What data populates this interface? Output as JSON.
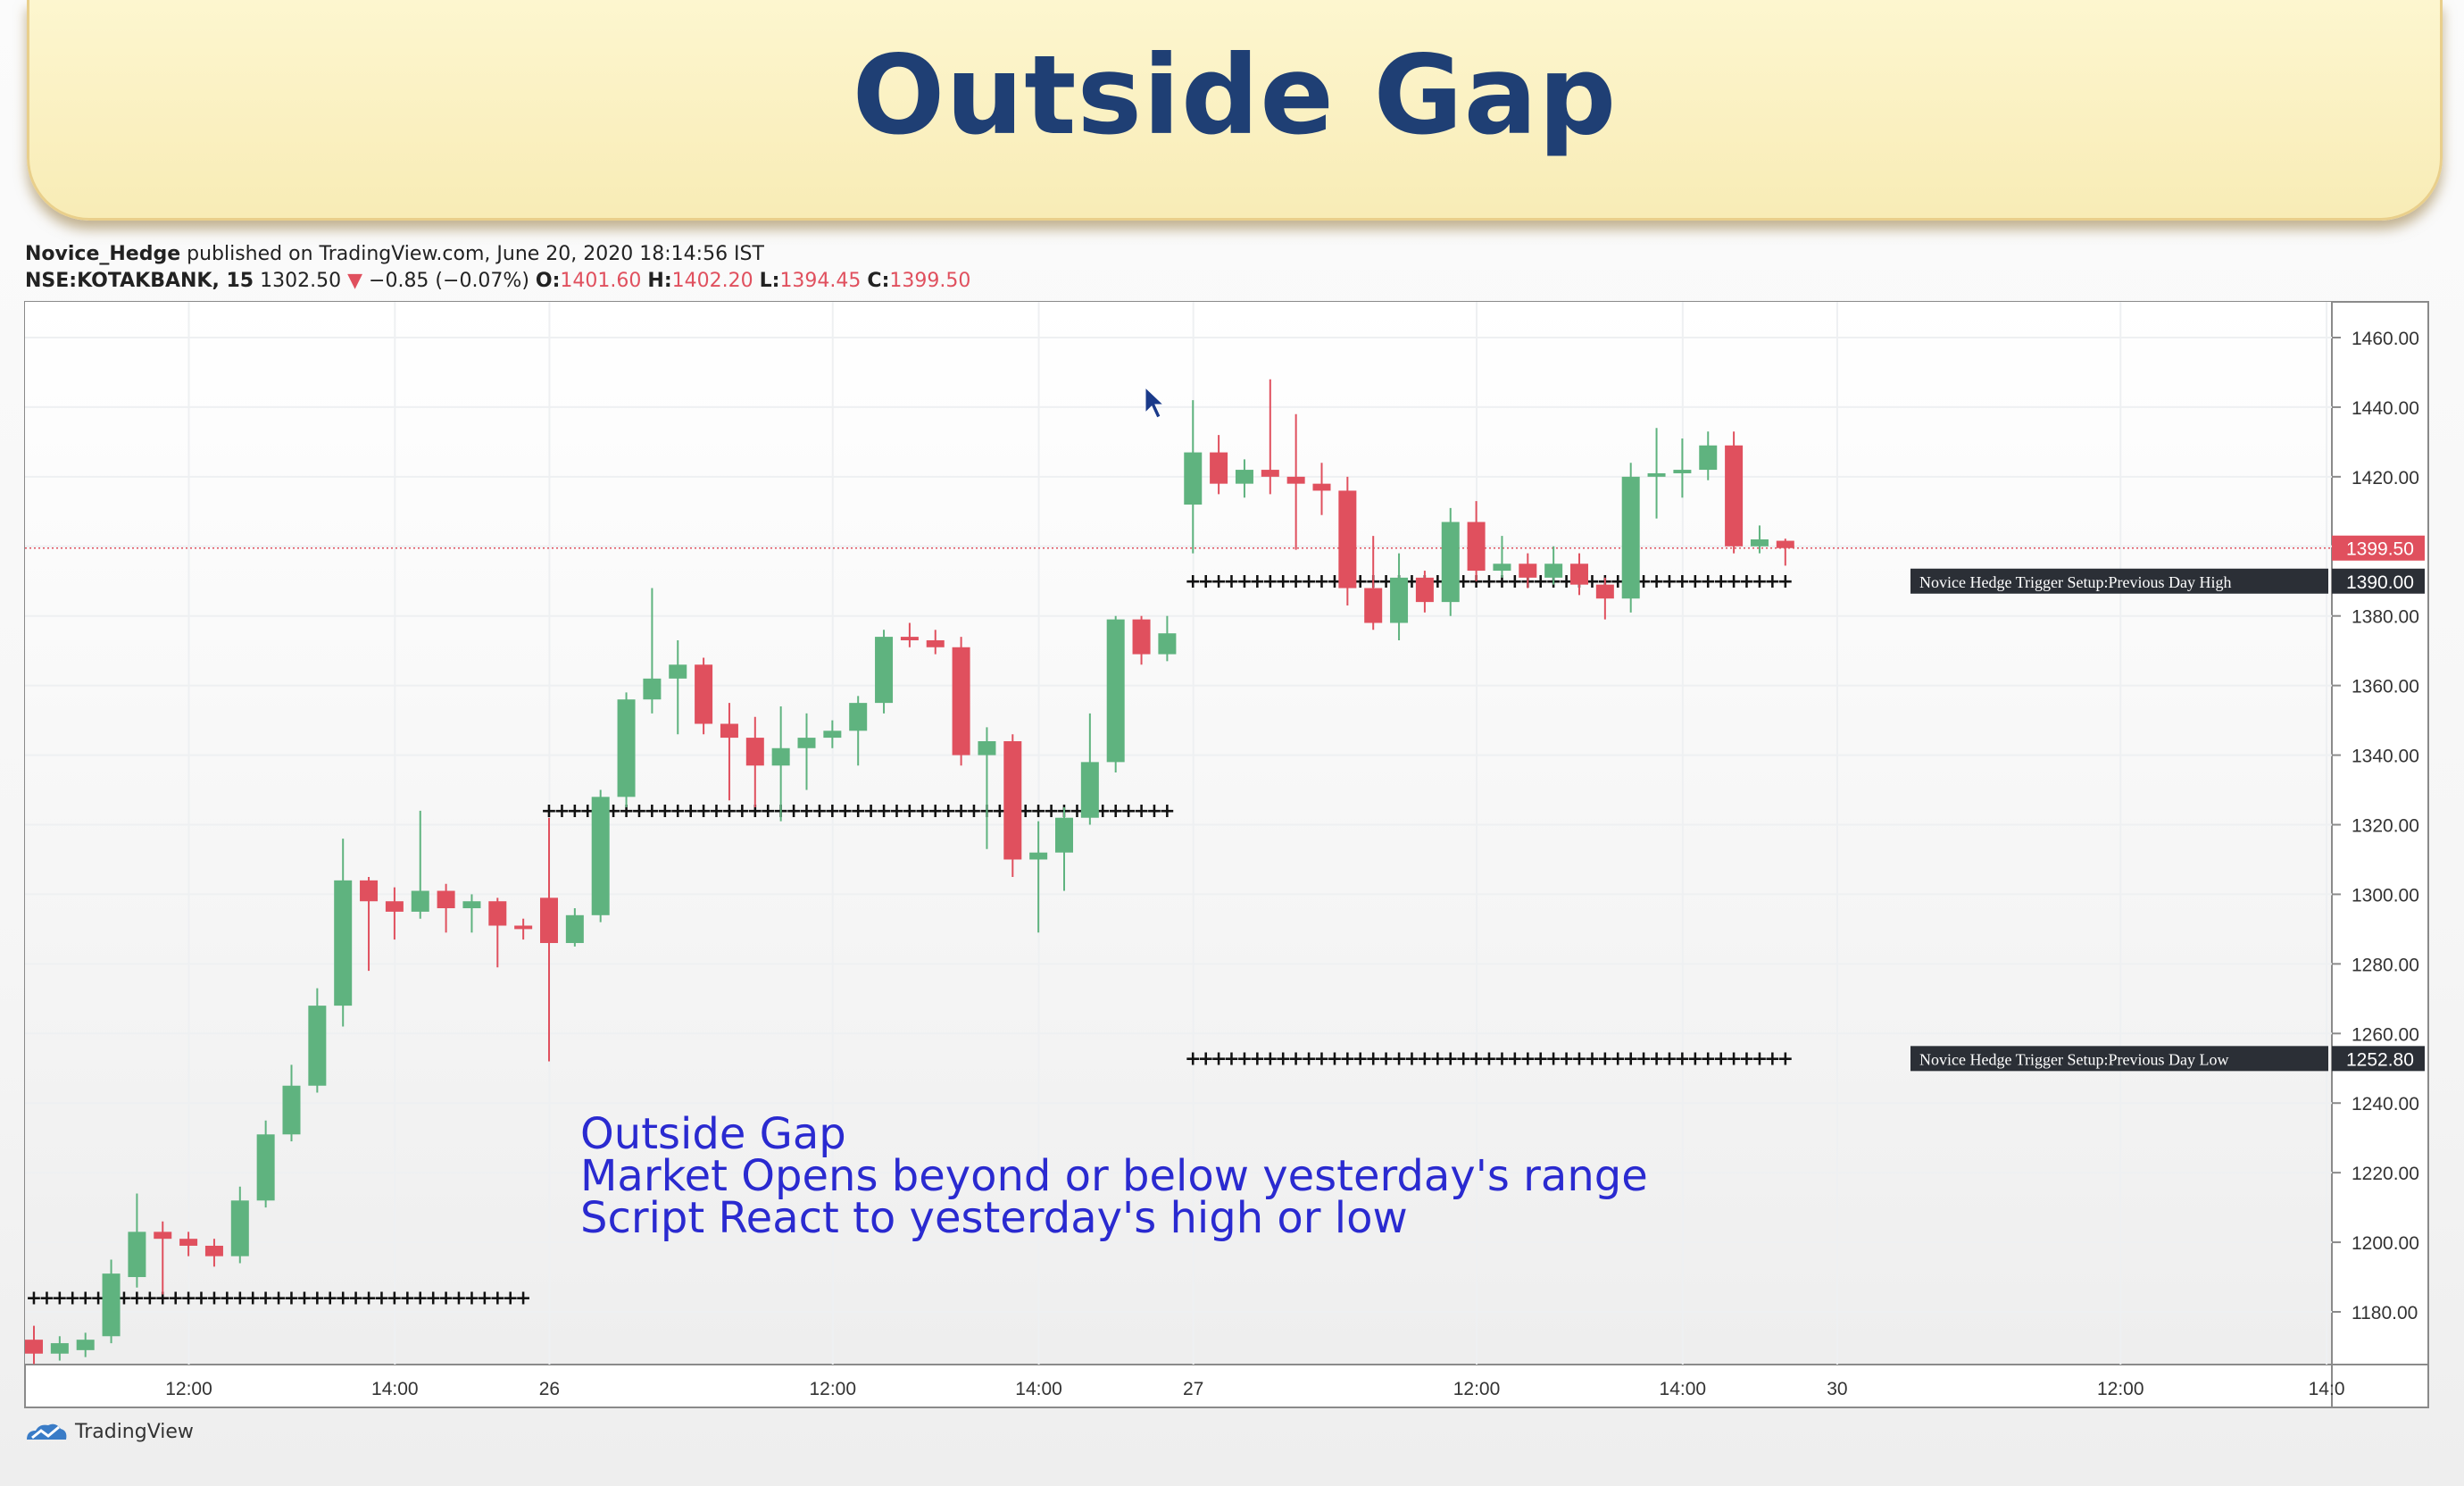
{
  "banner": {
    "title": "Outside Gap"
  },
  "header": {
    "author": "Novice_Hedge",
    "published_text": "published on TradingView.com, June 20, 2020 18:14:56 IST",
    "symbol": "NSE:KOTAKBANK, 15",
    "price": "1302.50",
    "change": "−0.85 (−0.07%)",
    "o_label": "O:",
    "o_value": "1401.60",
    "h_label": "H:",
    "h_value": "1402.20",
    "l_label": "L:",
    "l_value": "1394.45",
    "c_label": "C:",
    "c_value": "1399.50"
  },
  "footer": {
    "brand": "TradingView"
  },
  "colors": {
    "up": "#5fb37f",
    "down": "#e0505e",
    "annotation": "#2a2ad0",
    "axis_label_bg": "#2b2f36"
  },
  "chart_data": {
    "type": "candlestick",
    "title": "",
    "ylim": [
      1168,
      1468
    ],
    "y_ticks": [
      "1460.00",
      "1440.00",
      "1420.00",
      "1400.00",
      "1380.00",
      "1360.00",
      "1340.00",
      "1320.00",
      "1300.00",
      "1280.00",
      "1260.00",
      "1240.00",
      "1220.00",
      "1200.00",
      "1180.00"
    ],
    "x_ticks": [
      {
        "bar": 6,
        "label": "12:00"
      },
      {
        "bar": 14,
        "label": "14:00"
      },
      {
        "bar": 20,
        "label": "26"
      },
      {
        "bar": 31,
        "label": "12:00"
      },
      {
        "bar": 39,
        "label": "14:00"
      },
      {
        "bar": 45,
        "label": "27"
      },
      {
        "bar": 56,
        "label": "12:00"
      },
      {
        "bar": 64,
        "label": "14:00"
      },
      {
        "bar": 70,
        "label": "30"
      },
      {
        "bar": 81,
        "label": "12:00"
      },
      {
        "bar": 89,
        "label": "14:0"
      }
    ],
    "candles": [
      [
        1172,
        1168,
        1176,
        1165
      ],
      [
        1168,
        1171,
        1173,
        1166
      ],
      [
        1169,
        1172,
        1174,
        1167
      ],
      [
        1173,
        1191,
        1195,
        1171
      ],
      [
        1190,
        1203,
        1214,
        1187
      ],
      [
        1203,
        1201,
        1206,
        1185
      ],
      [
        1201,
        1199,
        1203,
        1196
      ],
      [
        1199,
        1196,
        1201,
        1193
      ],
      [
        1196,
        1212,
        1216,
        1194
      ],
      [
        1212,
        1231,
        1235,
        1210
      ],
      [
        1231,
        1245,
        1251,
        1229
      ],
      [
        1245,
        1268,
        1273,
        1243
      ],
      [
        1268,
        1304,
        1316,
        1262
      ],
      [
        1304,
        1298,
        1305,
        1278
      ],
      [
        1298,
        1295,
        1302,
        1287
      ],
      [
        1295,
        1301,
        1324,
        1293
      ],
      [
        1301,
        1296,
        1303,
        1289
      ],
      [
        1296,
        1298,
        1300,
        1289
      ],
      [
        1298,
        1291,
        1299,
        1279
      ],
      [
        1291,
        1290,
        1293,
        1287
      ],
      [
        1299,
        1286,
        1322,
        1252
      ],
      [
        1286,
        1294,
        1296,
        1285
      ],
      [
        1294,
        1328,
        1330,
        1292
      ],
      [
        1328,
        1356,
        1358,
        1325
      ],
      [
        1356,
        1362,
        1388,
        1352
      ],
      [
        1362,
        1366,
        1373,
        1346
      ],
      [
        1366,
        1349,
        1368,
        1346
      ],
      [
        1349,
        1345,
        1355,
        1327
      ],
      [
        1345,
        1337,
        1351,
        1325
      ],
      [
        1337,
        1342,
        1354,
        1321
      ],
      [
        1342,
        1345,
        1352,
        1330
      ],
      [
        1345,
        1347,
        1350,
        1342
      ],
      [
        1347,
        1355,
        1357,
        1337
      ],
      [
        1355,
        1374,
        1376,
        1352
      ],
      [
        1374,
        1373,
        1378,
        1371
      ],
      [
        1373,
        1371,
        1376,
        1369
      ],
      [
        1371,
        1340,
        1374,
        1337
      ],
      [
        1340,
        1344,
        1348,
        1313
      ],
      [
        1344,
        1310,
        1346,
        1305
      ],
      [
        1310,
        1312,
        1321,
        1289
      ],
      [
        1312,
        1322,
        1325,
        1301
      ],
      [
        1322,
        1338,
        1352,
        1320
      ],
      [
        1338,
        1379,
        1380,
        1335
      ],
      [
        1379,
        1369,
        1380,
        1366
      ],
      [
        1369,
        1375,
        1380,
        1367
      ],
      [
        1412,
        1427,
        1442,
        1398
      ],
      [
        1427,
        1418,
        1432,
        1415
      ],
      [
        1418,
        1422,
        1425,
        1414
      ],
      [
        1422,
        1420,
        1448,
        1415
      ],
      [
        1420,
        1418,
        1438,
        1399
      ],
      [
        1418,
        1416,
        1424,
        1409
      ],
      [
        1416,
        1388,
        1420,
        1383
      ],
      [
        1388,
        1378,
        1403,
        1376
      ],
      [
        1378,
        1391,
        1398,
        1373
      ],
      [
        1391,
        1384,
        1393,
        1381
      ],
      [
        1384,
        1407,
        1411,
        1380
      ],
      [
        1407,
        1393,
        1413,
        1390
      ],
      [
        1393,
        1395,
        1403,
        1391
      ],
      [
        1395,
        1391,
        1398,
        1388
      ],
      [
        1391,
        1395,
        1400,
        1389
      ],
      [
        1395,
        1389,
        1398,
        1386
      ],
      [
        1389,
        1385,
        1391,
        1379
      ],
      [
        1385,
        1420,
        1424,
        1381
      ],
      [
        1420,
        1421,
        1434,
        1408
      ],
      [
        1421,
        1422,
        1431,
        1414
      ],
      [
        1422,
        1429,
        1433,
        1419
      ],
      [
        1429,
        1400,
        1433,
        1398
      ],
      [
        1400,
        1402,
        1406,
        1398
      ],
      [
        1401.6,
        1399.5,
        1402.2,
        1394.45
      ]
    ],
    "levels": [
      {
        "value": 1184,
        "from_bar": 0,
        "to_bar": 19
      },
      {
        "value": 1324,
        "from_bar": 20,
        "to_bar": 44
      },
      {
        "value": 1390,
        "from_bar": 45,
        "to_bar": 68,
        "label": "Novice Hedge Trigger Setup:Previous Day High",
        "price_label": "1390.00"
      },
      {
        "value": 1252.8,
        "from_bar": 45,
        "to_bar": 68,
        "label": "Novice Hedge Trigger Setup:Previous Day Low",
        "price_label": "1252.80"
      }
    ],
    "last_price": {
      "value": 1399.5,
      "label": "1399.50"
    },
    "annotation": [
      "Outside Gap",
      "Market Opens beyond or below yesterday's range",
      "Script React to yesterday's high or low"
    ]
  }
}
